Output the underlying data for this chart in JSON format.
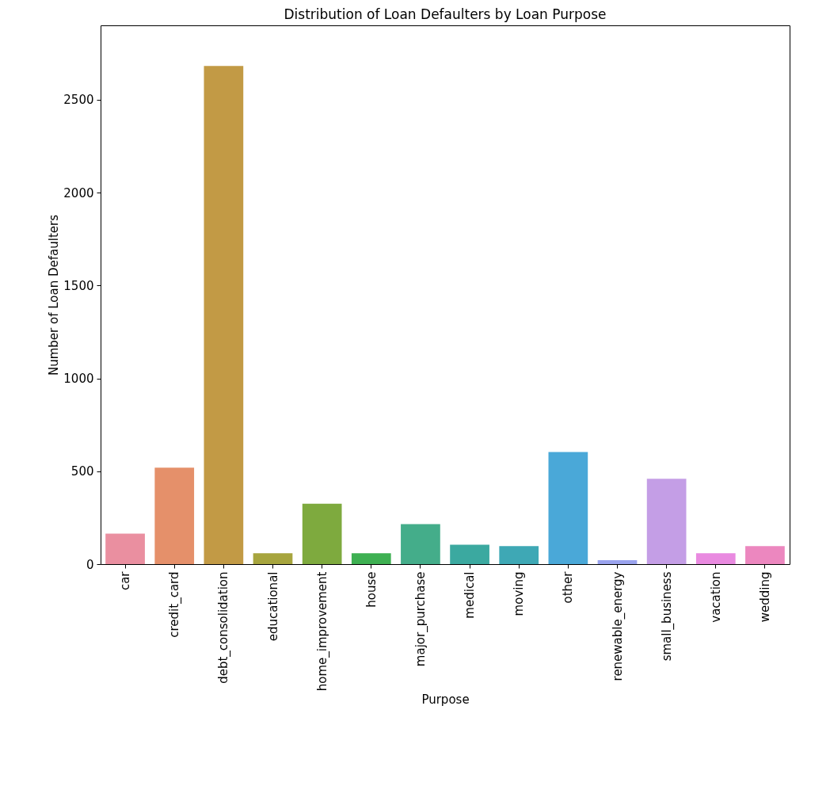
{
  "chart_data": {
    "type": "bar",
    "title": "Distribution of Loan Defaulters by Loan Purpose",
    "xlabel": "Purpose",
    "ylabel": "Number of Loan Defaulters",
    "categories": [
      "car",
      "credit_card",
      "debt_consolidation",
      "educational",
      "home_improvement",
      "house",
      "major_purchase",
      "medical",
      "moving",
      "other",
      "renewable_energy",
      "small_business",
      "vacation",
      "wedding"
    ],
    "values": [
      164,
      519,
      2681,
      59,
      325,
      59,
      215,
      105,
      97,
      603,
      21,
      460,
      59,
      97
    ],
    "colors": [
      "#ea8fa0",
      "#e5906a",
      "#c29a45",
      "#a7a53e",
      "#7eaa3e",
      "#3eb052",
      "#44ad8a",
      "#3ba9a0",
      "#3ea8b5",
      "#4aa8d8",
      "#9aa3ee",
      "#c49ee6",
      "#e98ae0",
      "#ec87bf"
    ],
    "ylim": [
      0,
      2900
    ],
    "yticks": [
      0,
      500,
      1000,
      1500,
      2000,
      2500
    ],
    "grid": false
  }
}
